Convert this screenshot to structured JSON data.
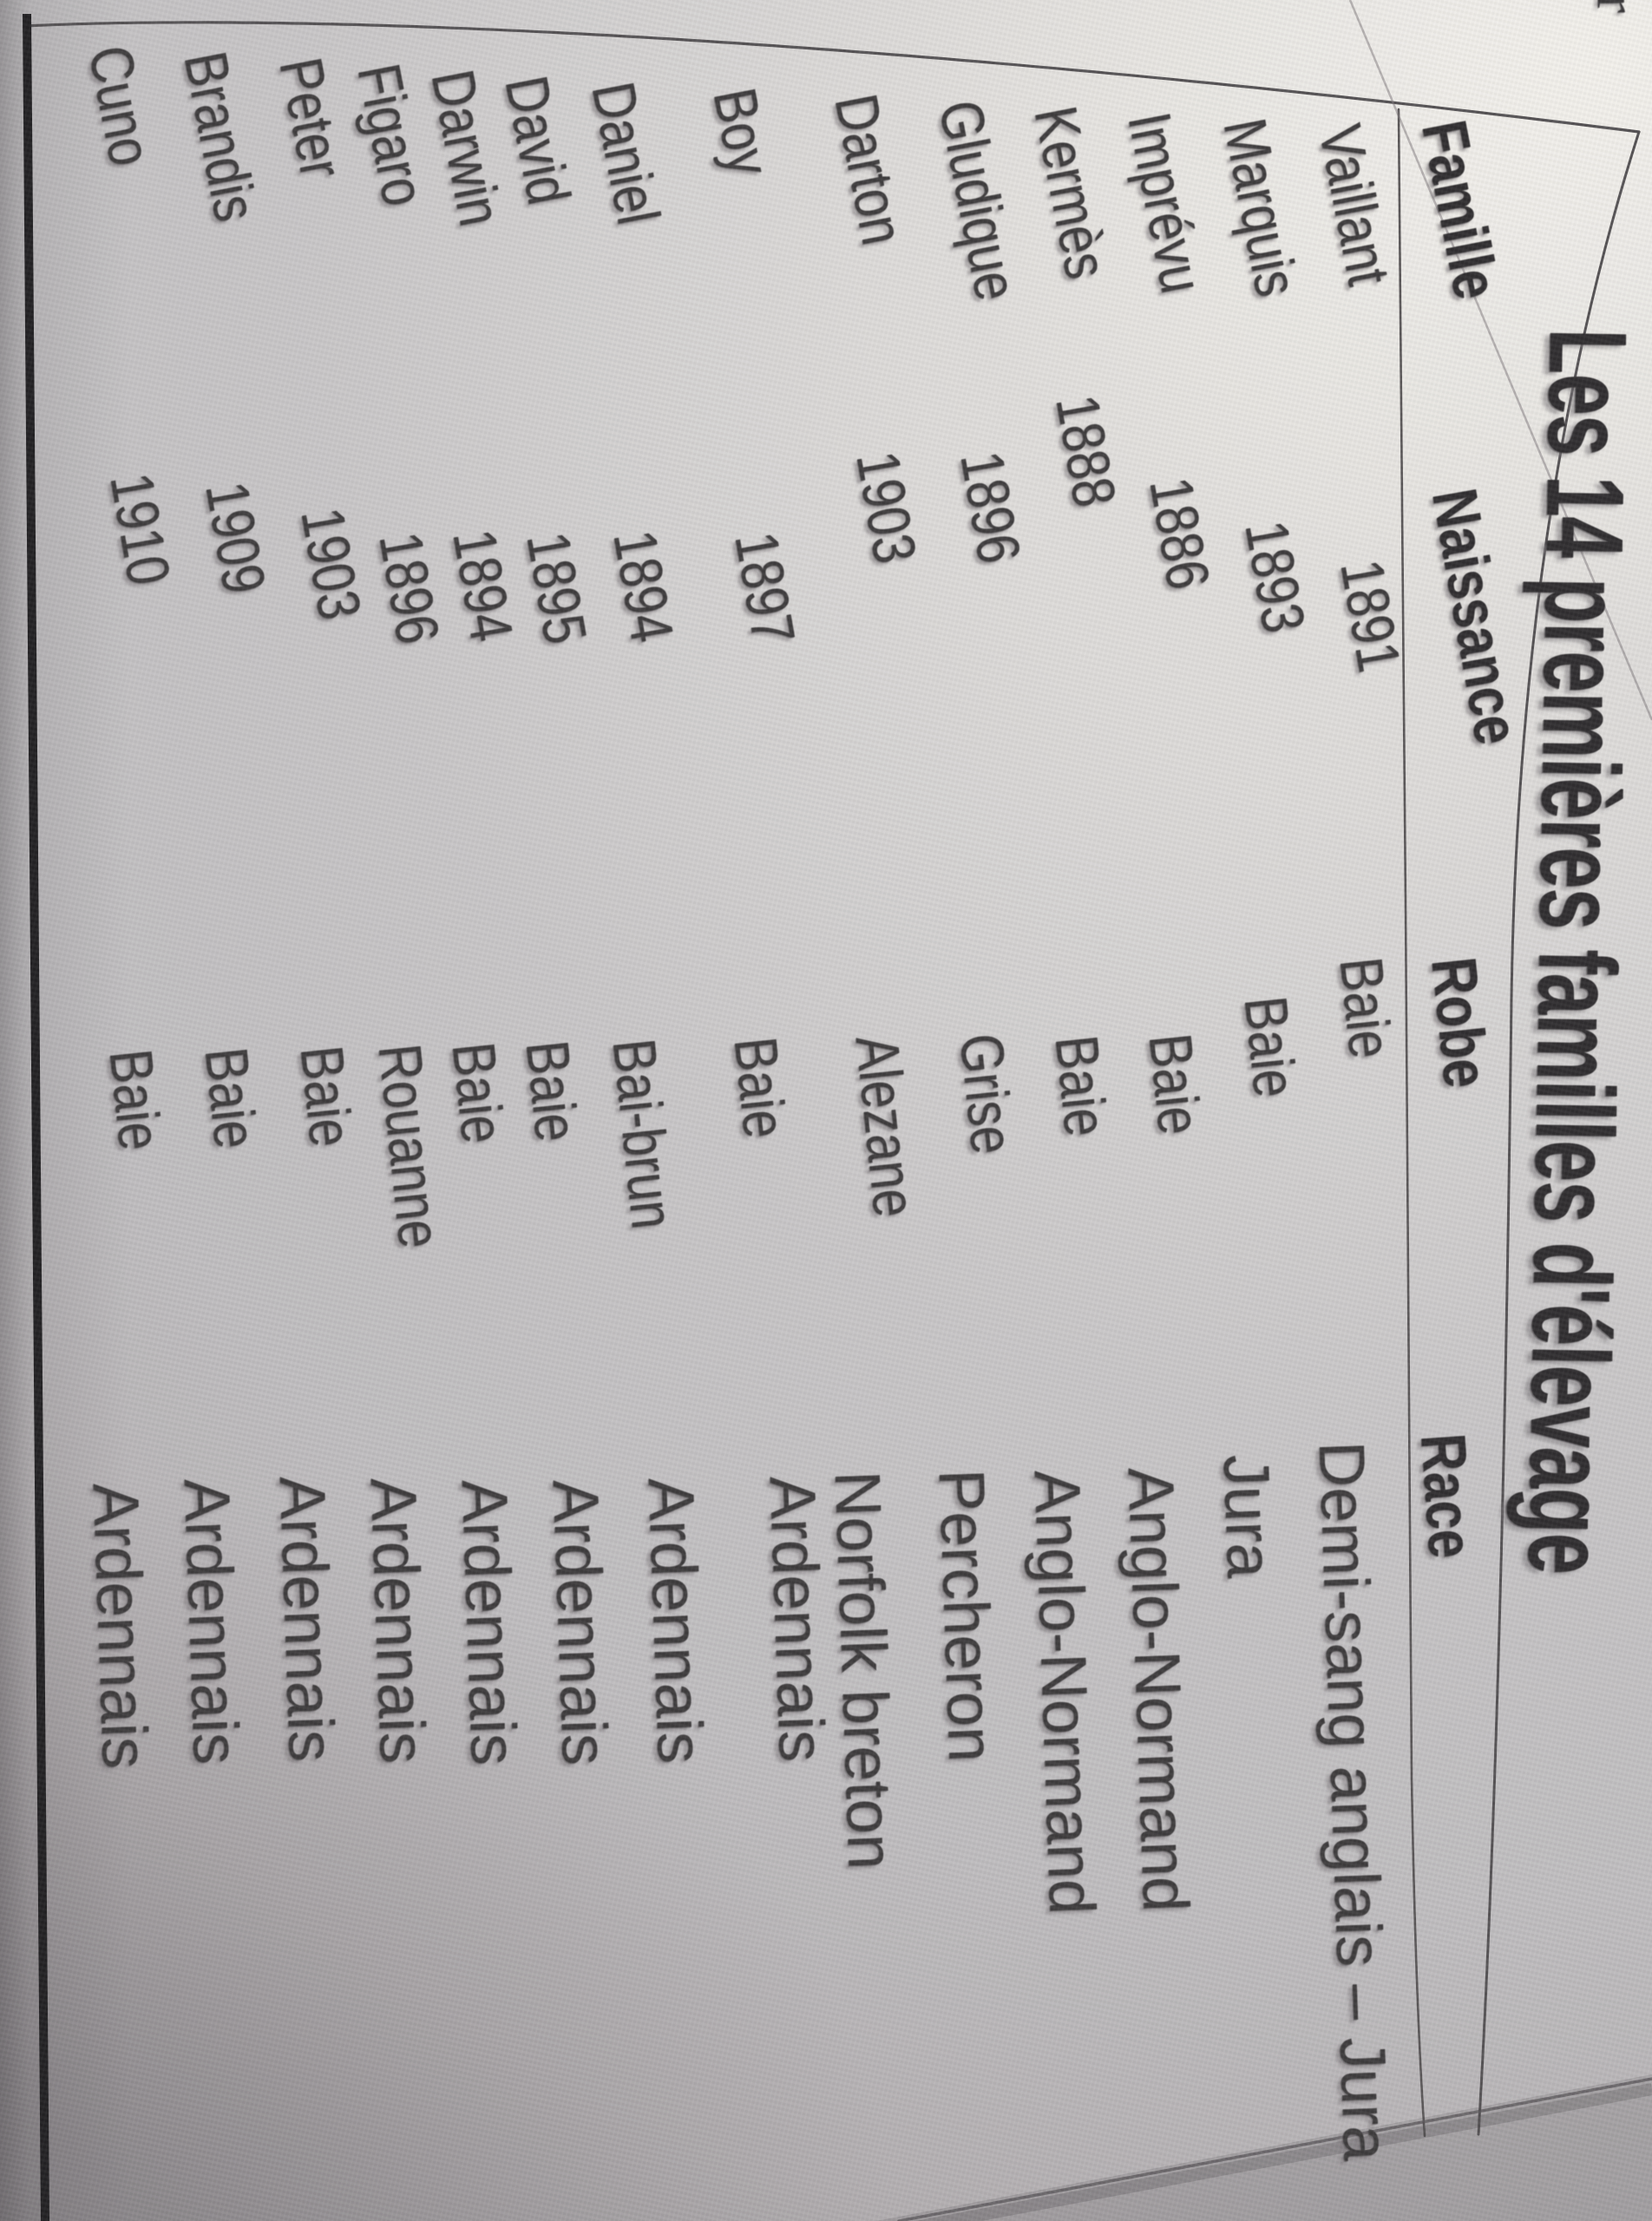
{
  "photo_description": "photographed textbook page, rotated sideways",
  "corner_snippet": "ır",
  "title": "Les 14 premières familles d'élevage",
  "table": {
    "headers": [
      "Famille",
      "Naissance",
      "Robe",
      "Race"
    ],
    "rows": [
      {
        "famille": "Vaillant",
        "naissance": "1891",
        "robe": "Baie",
        "race": "Demi-sang anglais – Jura"
      },
      {
        "famille": "Marquis",
        "naissance": "1893",
        "robe": "Baie",
        "race": "Jura"
      },
      {
        "famille": "Imprévu",
        "naissance": "1886",
        "robe": "Baie",
        "race": "Anglo-Normand"
      },
      {
        "famille": "Kermès",
        "naissance": "1888",
        "robe": "Baie",
        "race": "Anglo-Normand"
      },
      {
        "famille": "Gludique",
        "naissance": "1896",
        "robe": "Grise",
        "race": "Percheron"
      },
      {
        "famille": "Darton",
        "naissance": "1903",
        "robe": "Alezane",
        "race": "Norfolk breton"
      },
      {
        "famille": "Boy",
        "naissance": "1897",
        "robe": "Baie",
        "race": "Ardennais"
      },
      {
        "famille": "Daniel",
        "naissance": "1894",
        "robe": "Bai-brun",
        "race": "Ardennais"
      },
      {
        "famille": "David",
        "naissance": "1895",
        "robe": "Baie",
        "race": "Ardennais"
      },
      {
        "famille": "Darwin",
        "naissance": "1894",
        "robe": "Baie",
        "race": "Ardennais"
      },
      {
        "famille": "Figaro",
        "naissance": "1896",
        "robe": "Rouanne",
        "race": "Ardennais"
      },
      {
        "famille": "Peter",
        "naissance": "1903",
        "robe": "Baie",
        "race": "Ardennais"
      },
      {
        "famille": "Brandis",
        "naissance": "1909",
        "robe": "Baie",
        "race": "Ardennais"
      },
      {
        "famille": "Cuno",
        "naissance": "1910",
        "robe": "Baie",
        "race": "Ardennais"
      }
    ]
  },
  "colors": {
    "paper": "#c9c7c8",
    "paper_bright": "#e9e7e3",
    "paper_dim": "#b3afb1",
    "paper_dark": "#9e9a9d",
    "ink": "#3e3c3d",
    "ink_strong": "#312f31",
    "rule": "#575456",
    "frame": "#232224"
  }
}
